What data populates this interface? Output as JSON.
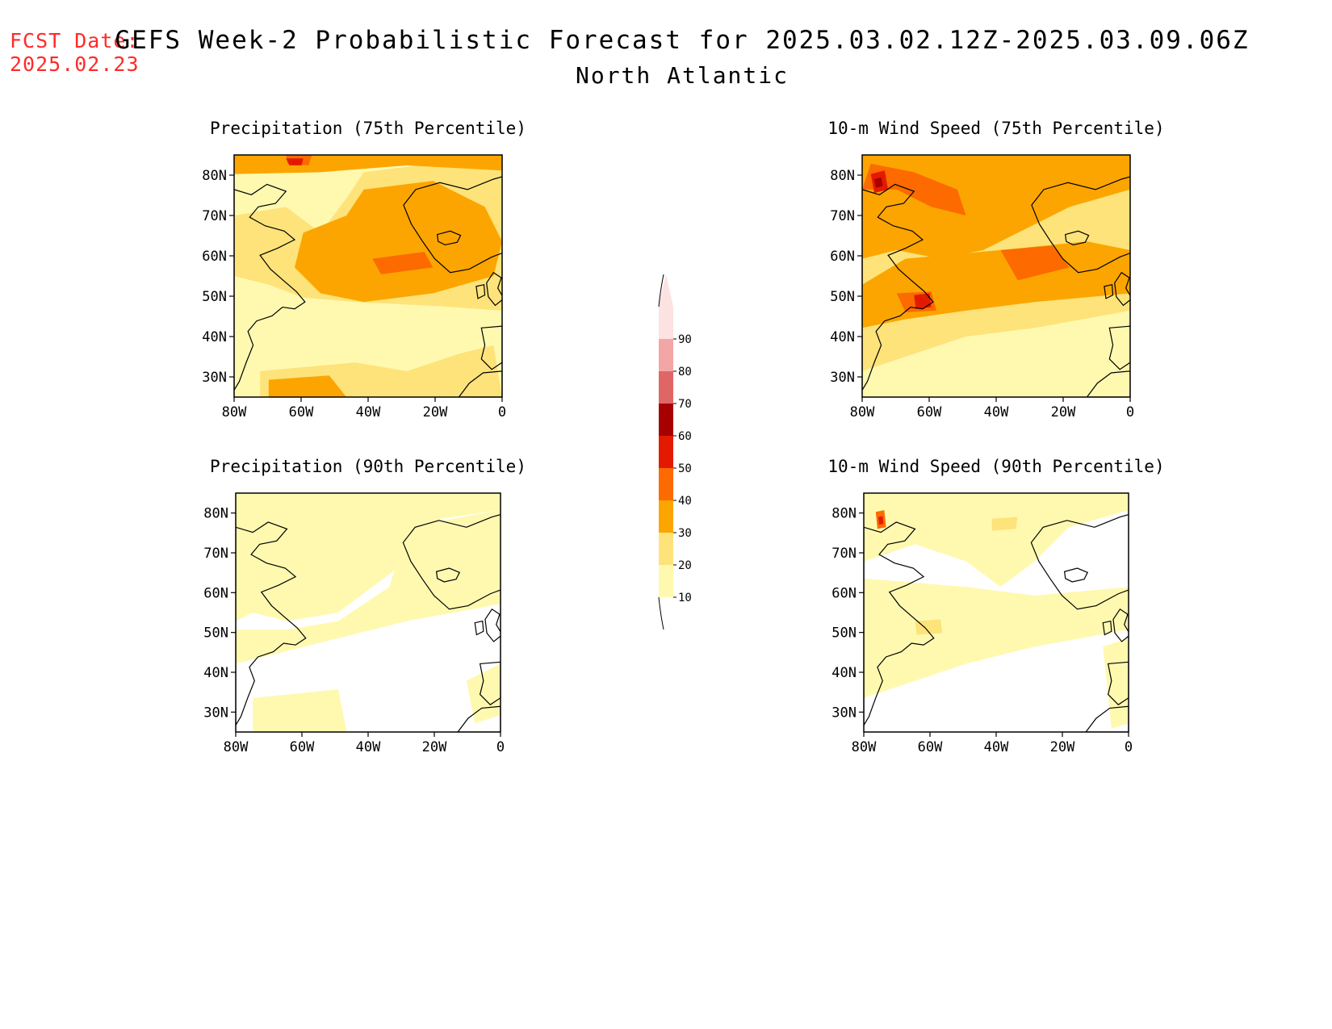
{
  "fcst_date": {
    "label": "FCST Date:",
    "value": "2025.02.23"
  },
  "title": "GEFS Week-2 Probabilistic Forecast for 2025.03.02.12Z-2025.03.09.06Z",
  "region": "North Atlantic",
  "panels": [
    {
      "title": "Precipitation (75th Percentile)",
      "field": "precip75"
    },
    {
      "title": "10-m Wind Speed (75th Percentile)",
      "field": "wind75"
    },
    {
      "title": "Precipitation (90th Percentile)",
      "field": "precip90"
    },
    {
      "title": "10-m Wind Speed (90th Percentile)",
      "field": "wind90"
    }
  ],
  "axes": {
    "lat_ticks": [
      "80N",
      "70N",
      "60N",
      "50N",
      "40N",
      "30N"
    ],
    "lon_ticks": [
      "80W",
      "60W",
      "40W",
      "20W",
      "0"
    ],
    "lon_range": [
      -80,
      0
    ],
    "lat_range": [
      25,
      85
    ]
  },
  "colorbar": {
    "levels": [
      "10",
      "20",
      "30",
      "40",
      "50",
      "60",
      "70",
      "80",
      "90"
    ],
    "colors": [
      "#fff9b0",
      "#fde37a",
      "#fca500",
      "#fc6a00",
      "#e41a00",
      "#a60000",
      "#e06666",
      "#f4a6a6",
      "#fde2e2"
    ]
  },
  "colors": {
    "date": "#ff2a2a",
    "coast": "#000000"
  }
}
